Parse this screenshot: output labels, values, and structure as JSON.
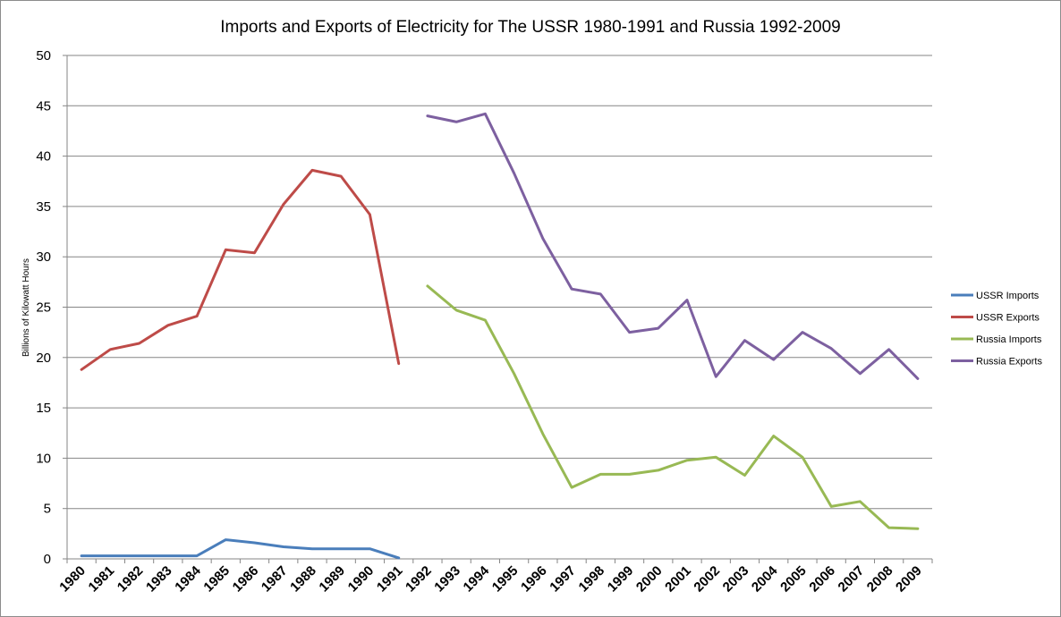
{
  "chart_data": {
    "type": "line",
    "title": "Imports and Exports of Electricity for The USSR 1980-1991 and Russia 1992-2009",
    "xlabel": "",
    "ylabel": "Billions of Kilowatt Hours",
    "ylim": [
      0,
      50
    ],
    "yticks": [
      0,
      5,
      10,
      15,
      20,
      25,
      30,
      35,
      40,
      45,
      50
    ],
    "grid": true,
    "legend_position": "right",
    "categories": [
      "1980",
      "1981",
      "1982",
      "1983",
      "1984",
      "1985",
      "1986",
      "1987",
      "1988",
      "1989",
      "1990",
      "1991",
      "1992",
      "1993",
      "1994",
      "1995",
      "1996",
      "1997",
      "1998",
      "1999",
      "2000",
      "2001",
      "2002",
      "2003",
      "2004",
      "2005",
      "2006",
      "2007",
      "2008",
      "2009"
    ],
    "series": [
      {
        "name": "USSR Imports",
        "color": "#4a7ebb",
        "values": [
          0.3,
          0.3,
          0.3,
          0.3,
          0.3,
          1.9,
          1.6,
          1.2,
          1.0,
          1.0,
          1.0,
          0.1,
          null,
          null,
          null,
          null,
          null,
          null,
          null,
          null,
          null,
          null,
          null,
          null,
          null,
          null,
          null,
          null,
          null,
          null
        ]
      },
      {
        "name": "USSR Exports",
        "color": "#be4b48",
        "values": [
          18.8,
          20.8,
          21.4,
          23.2,
          24.1,
          30.7,
          30.4,
          35.2,
          38.6,
          38.0,
          34.2,
          19.4,
          null,
          null,
          null,
          null,
          null,
          null,
          null,
          null,
          null,
          null,
          null,
          null,
          null,
          null,
          null,
          null,
          null,
          null
        ]
      },
      {
        "name": "Russia Imports",
        "color": "#98b954",
        "values": [
          null,
          null,
          null,
          null,
          null,
          null,
          null,
          null,
          null,
          null,
          null,
          null,
          27.1,
          24.7,
          23.7,
          18.4,
          12.4,
          7.1,
          8.4,
          8.4,
          8.8,
          9.8,
          10.1,
          8.3,
          12.2,
          10.1,
          5.2,
          5.7,
          3.1,
          3.0
        ]
      },
      {
        "name": "Russia Exports",
        "color": "#7d60a0",
        "values": [
          null,
          null,
          null,
          null,
          null,
          null,
          null,
          null,
          null,
          null,
          null,
          null,
          44.0,
          43.4,
          44.2,
          38.3,
          31.8,
          26.8,
          26.3,
          22.5,
          22.9,
          25.7,
          18.1,
          21.7,
          19.8,
          22.5,
          20.9,
          18.4,
          20.8,
          17.9
        ]
      }
    ]
  }
}
